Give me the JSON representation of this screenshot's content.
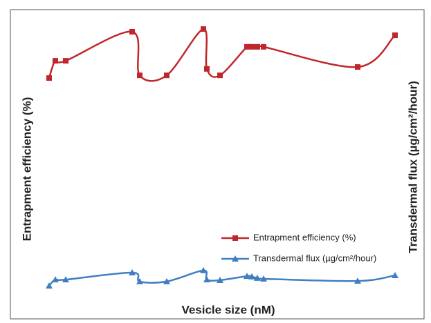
{
  "chart_data": {
    "type": "line",
    "xlabel": "Vesicle size (nM)",
    "ylabel": "Entrapment efficiency (%)",
    "y2label": "Transdermal flux (µg/cm²/hour)",
    "x": [
      11,
      20,
      35,
      131,
      142,
      181,
      234,
      239,
      258,
      297,
      304,
      312,
      321,
      457,
      511
    ],
    "xlim": [
      0,
      530
    ],
    "ylim": [
      0,
      100
    ],
    "y2lim": [
      0,
      100
    ],
    "legend": "lower right",
    "series": [
      {
        "name": "Entrapment efficiency (%)",
        "color": "#c0272d",
        "marker": "square",
        "values": [
          78.7,
          85.1,
          85.1,
          95.9,
          79.7,
          79.7,
          96.9,
          82.1,
          79.7,
          90.3,
          90.3,
          90.3,
          90.3,
          82.8,
          94.6
        ]
      },
      {
        "name": "Transdermal flux (µg/cm²/hour)",
        "color": "#3f7fc1",
        "marker": "triangle",
        "axis": "y2",
        "values": [
          1.5,
          3.8,
          3.8,
          6.4,
          3.1,
          3.1,
          7.2,
          3.8,
          3.6,
          5.1,
          4.9,
          4.4,
          4.1,
          3.3,
          5.4
        ]
      }
    ]
  }
}
